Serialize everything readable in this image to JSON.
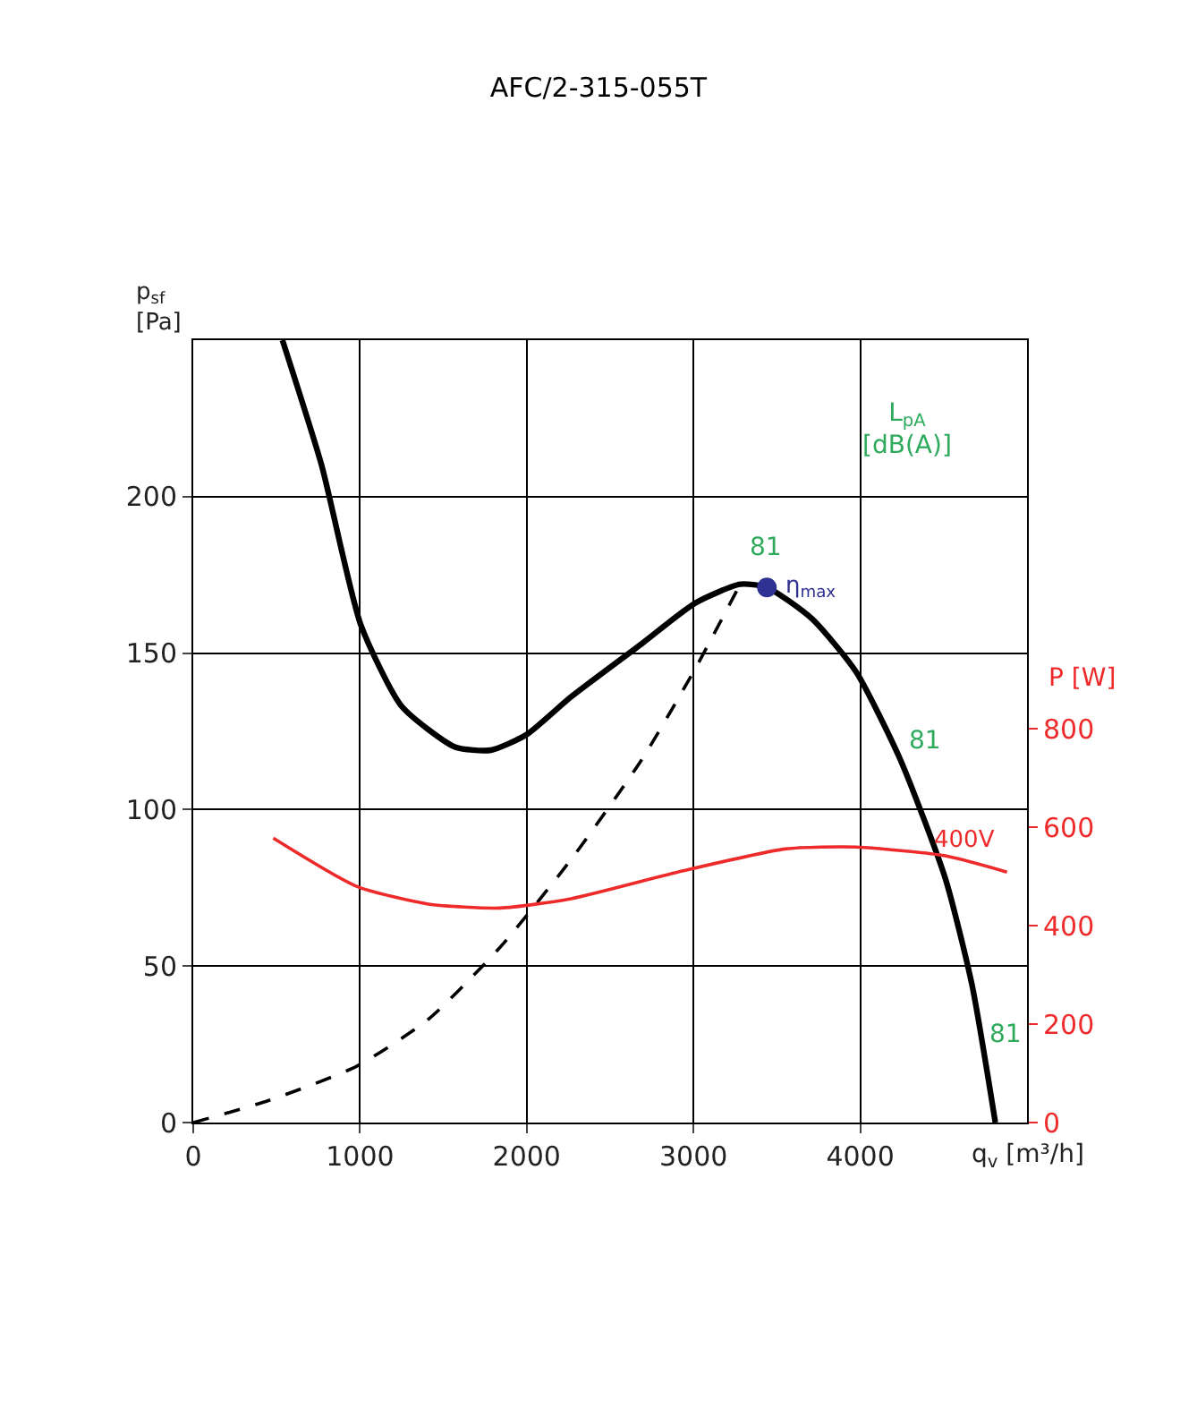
{
  "chart_data": {
    "type": "line",
    "title": "AFC/2-315-055T",
    "xlabel": "q$_{v}$ [m³/h]",
    "ylabel": "p$_{sf}$\n[Pa]",
    "y2label": "P [W]",
    "xlim": [
      0,
      5000
    ],
    "xticks": [
      0,
      1000,
      2000,
      3000,
      4000
    ],
    "ylim": [
      0,
      250
    ],
    "yticks": [
      0,
      50,
      100,
      150,
      200
    ],
    "y2lim": [
      0,
      1590
    ],
    "y2ticks": [
      0,
      200,
      400,
      600,
      800
    ],
    "grid": true,
    "legend": false,
    "marker": "none",
    "series": [
      {
        "color": "#000000",
        "line_style": "solid",
        "x": [
          535,
          770,
          1005,
          1250,
          1570,
          1785,
          2000,
          2265,
          2690,
          3010,
          3280,
          3440,
          3710,
          3975,
          4240,
          4510,
          4670,
          4810
        ],
        "values": [
          250,
          210,
          159,
          133,
          120,
          119,
          124,
          136,
          153,
          166,
          172,
          171,
          161,
          144,
          116,
          78,
          44,
          0
        ]
      },
      {
        "color": "#000000",
        "line_style": "dashed",
        "x": [
          0,
          450,
          980,
          1410,
          1840,
          2265,
          2690,
          3010,
          3280
        ],
        "values": [
          0,
          7,
          18,
          33,
          56,
          84,
          116,
          145,
          172
        ]
      },
      {
        "name": "400V",
        "color": "#ee2a2a",
        "line_style": "solid",
        "axis": "y2",
        "x": [
          480,
          980,
          1410,
          1840,
          2265,
          2905,
          3550,
          3975,
          4510,
          4880
        ],
        "values": [
          578,
          480,
          444,
          436,
          455,
          509,
          556,
          560,
          542,
          509
        ]
      },
      {
        "name": "η$_{max}$",
        "type": "scatter",
        "marker": "circle",
        "color": "#2e3192",
        "x": [
          3440
        ],
        "values": [
          171
        ]
      }
    ],
    "annotations": [
      "L$_{pA}$\n[dB(A)]",
      "81",
      "81",
      "81"
    ]
  }
}
